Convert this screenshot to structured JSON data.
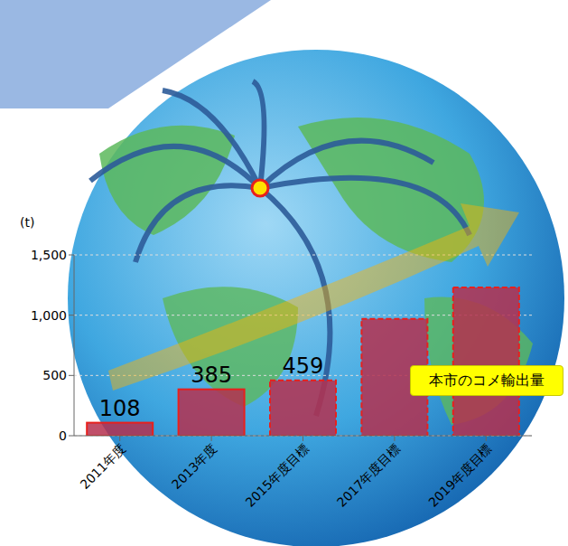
{
  "chart_data": {
    "type": "bar",
    "categories": [
      "2011年度",
      "2013年度",
      "2015年度目標",
      "2017年度目標",
      "2019年度目標"
    ],
    "values": [
      108,
      385,
      459,
      970,
      1230
    ],
    "value_labels": [
      "108",
      "385",
      "459",
      null,
      null
    ],
    "color": "#b5304f",
    "ylim": [
      0,
      1500
    ],
    "yticks": [
      0,
      500,
      {
        "value": 1000,
        "label": "1,000"
      },
      {
        "value": 1500,
        "label": "1,500"
      }
    ],
    "grid": true,
    "ylabel": "(t)",
    "annotations": [
      "本市のコメ輸出量"
    ]
  }
}
